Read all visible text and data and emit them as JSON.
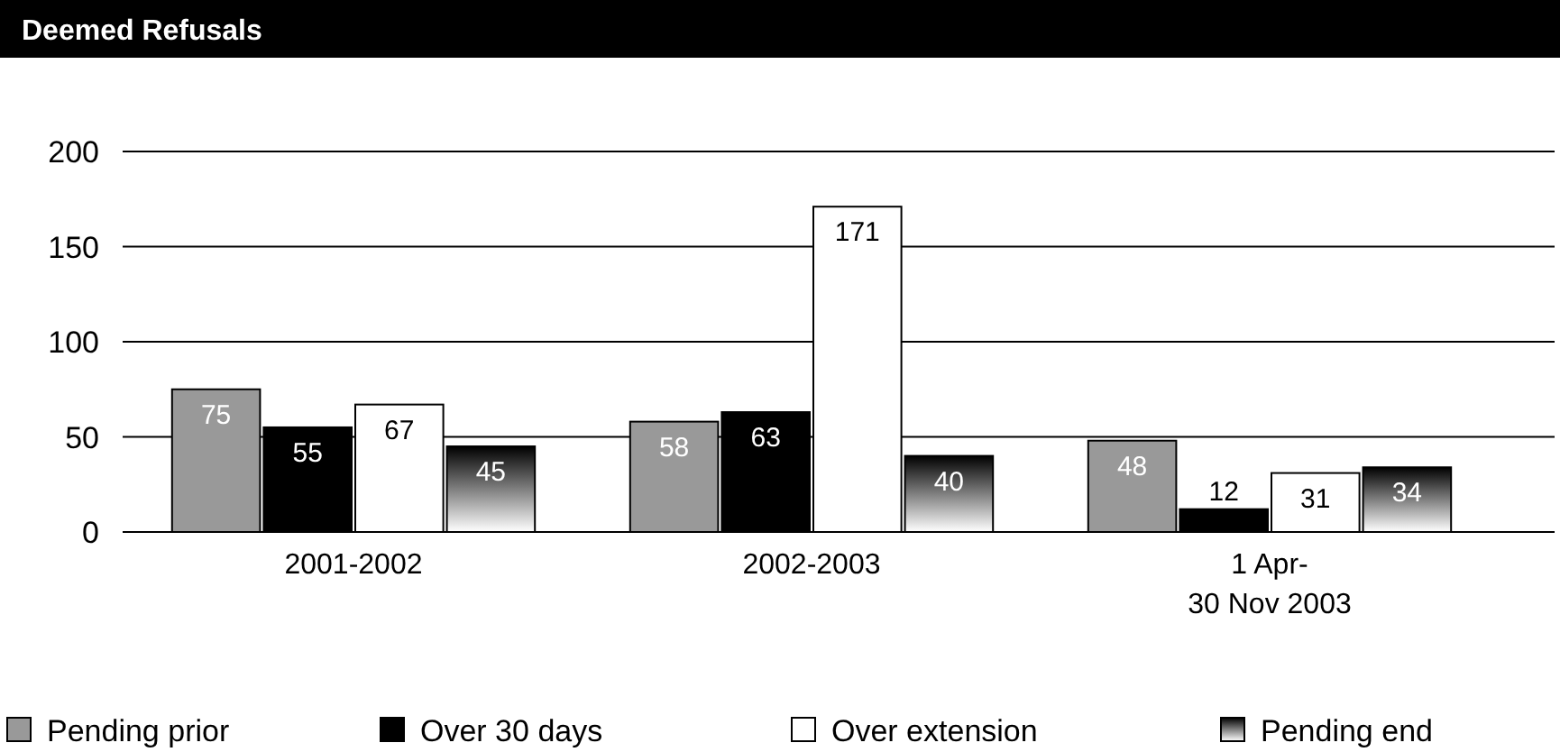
{
  "chart_data": {
    "type": "bar",
    "title": "Deemed Refusals",
    "categories": [
      "2001-2002",
      "2002-2003",
      "1 Apr-\n30 Nov 2003"
    ],
    "series": [
      {
        "name": "Pending prior",
        "color": "#999999",
        "values": [
          75,
          58,
          48
        ]
      },
      {
        "name": "Over 30 days",
        "color": "#000000",
        "values": [
          55,
          63,
          12
        ]
      },
      {
        "name": "Over extension",
        "color": "#ffffff",
        "values": [
          67,
          171,
          31
        ]
      },
      {
        "name": "Pending end",
        "color": "#000000",
        "values": [
          45,
          40,
          34
        ]
      }
    ],
    "ylim": [
      0,
      200
    ],
    "yticks": [
      0,
      50,
      100,
      150,
      200
    ],
    "grid": "y",
    "legend": "bottom",
    "data_labels": true
  }
}
